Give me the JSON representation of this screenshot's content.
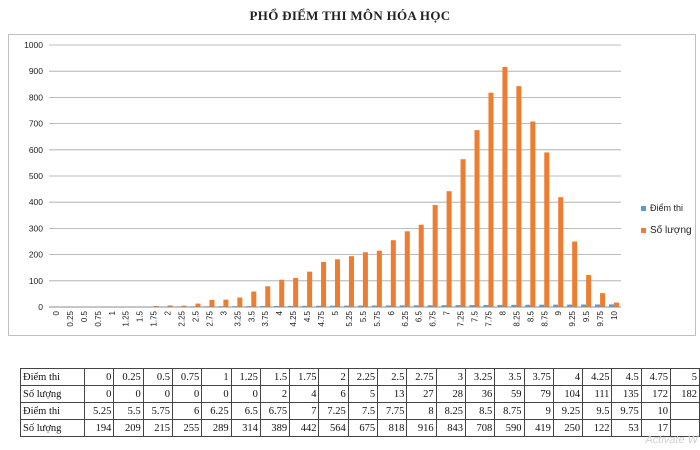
{
  "chart_data": {
    "type": "bar",
    "title": "PHỔ ĐIỂM THI MÔN HÓA HỌC",
    "categories": [
      "0",
      "0.25",
      "0.5",
      "0.75",
      "1",
      "1.25",
      "1.5",
      "1.75",
      "2",
      "2.25",
      "2.5",
      "2.75",
      "3",
      "3.25",
      "3.5",
      "3.75",
      "4",
      "4.25",
      "4.5",
      "4.75",
      "5",
      "5.25",
      "5.5",
      "5.75",
      "6",
      "6.25",
      "6.5",
      "6.75",
      "7",
      "7.25",
      "7.5",
      "7.75",
      "8",
      "8.25",
      "8.5",
      "8.75",
      "9",
      "9.25",
      "9.5",
      "9.75",
      "10"
    ],
    "series": [
      {
        "name": "Điểm thi",
        "color": "#5b9bd5",
        "values": [
          0,
          0.25,
          0.5,
          0.75,
          1,
          1.25,
          1.5,
          1.75,
          2,
          2.25,
          2.5,
          2.75,
          3,
          3.25,
          3.5,
          3.75,
          4,
          4.25,
          4.5,
          4.75,
          5,
          5.25,
          5.5,
          5.75,
          6,
          6.25,
          6.5,
          6.75,
          7,
          7.25,
          7.5,
          7.75,
          8,
          8.25,
          8.5,
          8.75,
          9,
          9.25,
          9.5,
          9.75,
          10
        ]
      },
      {
        "name": "Số lượng",
        "color": "#ed7d31",
        "values": [
          0,
          0,
          0,
          0,
          0,
          0,
          2,
          4,
          6,
          5,
          13,
          27,
          28,
          36,
          59,
          79,
          104,
          111,
          135,
          172,
          182,
          194,
          209,
          215,
          255,
          289,
          314,
          389,
          442,
          564,
          675,
          818,
          916,
          843,
          708,
          590,
          419,
          250,
          122,
          53,
          17
        ]
      }
    ],
    "ylim": [
      0,
      1000
    ],
    "yticks": [
      0,
      100,
      200,
      300,
      400,
      500,
      600,
      700,
      800,
      900,
      1000
    ],
    "grid": true,
    "legend": "right"
  },
  "table": {
    "rows": [
      {
        "label": "Điểm thi",
        "cells": [
          "0",
          "0.25",
          "0.5",
          "0.75",
          "1",
          "1.25",
          "1.5",
          "1.75",
          "2",
          "2.25",
          "2.5",
          "2.75",
          "3",
          "3.25",
          "3.5",
          "3.75",
          "4",
          "4.25",
          "4.5",
          "4.75",
          "5"
        ]
      },
      {
        "label": "Số lượng",
        "cells": [
          "0",
          "0",
          "0",
          "0",
          "0",
          "0",
          "2",
          "4",
          "6",
          "5",
          "13",
          "27",
          "28",
          "36",
          "59",
          "79",
          "104",
          "111",
          "135",
          "172",
          "182"
        ]
      },
      {
        "label": "Điểm thi",
        "cells": [
          "5.25",
          "5.5",
          "5.75",
          "6",
          "6.25",
          "6.5",
          "6.75",
          "7",
          "7.25",
          "7.5",
          "7.75",
          "8",
          "8.25",
          "8.5",
          "8.75",
          "9",
          "9.25",
          "9.5",
          "9.75",
          "10",
          ""
        ]
      },
      {
        "label": "Số lượng",
        "cells": [
          "194",
          "209",
          "215",
          "255",
          "289",
          "314",
          "389",
          "442",
          "564",
          "675",
          "818",
          "916",
          "843",
          "708",
          "590",
          "419",
          "250",
          "122",
          "53",
          "17",
          ""
        ]
      }
    ]
  },
  "watermark": "Activate W"
}
